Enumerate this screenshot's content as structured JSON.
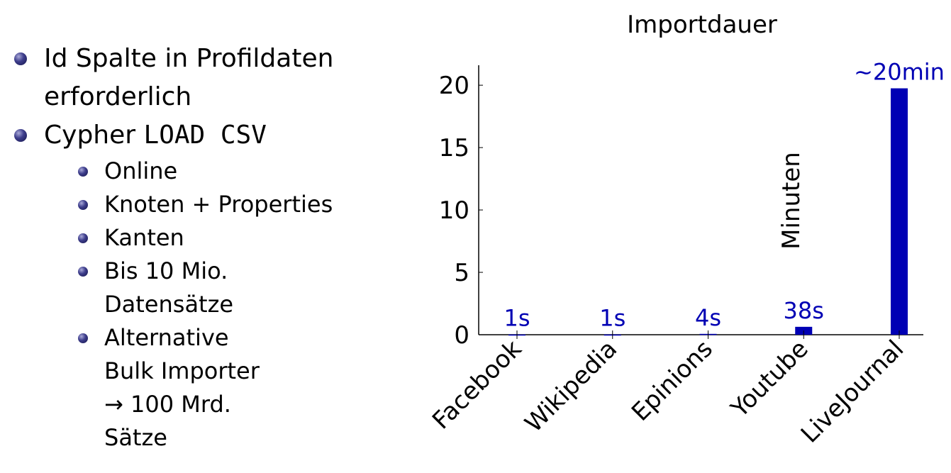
{
  "bullets": {
    "items": [
      {
        "text": "Id Spalte in Profildaten erforderlich"
      },
      {
        "prefix": "Cypher ",
        "code": "LOAD CSV",
        "subitems": [
          {
            "text": "Online"
          },
          {
            "text": "Knoten + Properties"
          },
          {
            "text": "Kanten"
          },
          {
            "text": "Bis 10 Mio. Datensätze"
          },
          {
            "text": "Alternative Bulk Importer → 100 Mrd. Sätze"
          }
        ]
      }
    ]
  },
  "chart_data": {
    "type": "bar",
    "title": "Importdauer",
    "ylabel": "Minuten",
    "xlabel": "",
    "categories": [
      "Facebook",
      "Wikipedia",
      "Epinions",
      "Youtube",
      "LiveJournal"
    ],
    "values": [
      0.0167,
      0.0167,
      0.0667,
      0.6333,
      19.75
    ],
    "data_labels": [
      "1s",
      "1s",
      "4s",
      "38s",
      "∼20min"
    ],
    "yticks": [
      "0",
      "5",
      "10",
      "15",
      "20"
    ],
    "ylim": [
      0,
      21.6
    ],
    "bar_color": "#0000b4",
    "label_color": "#0000b4",
    "grid": false
  }
}
